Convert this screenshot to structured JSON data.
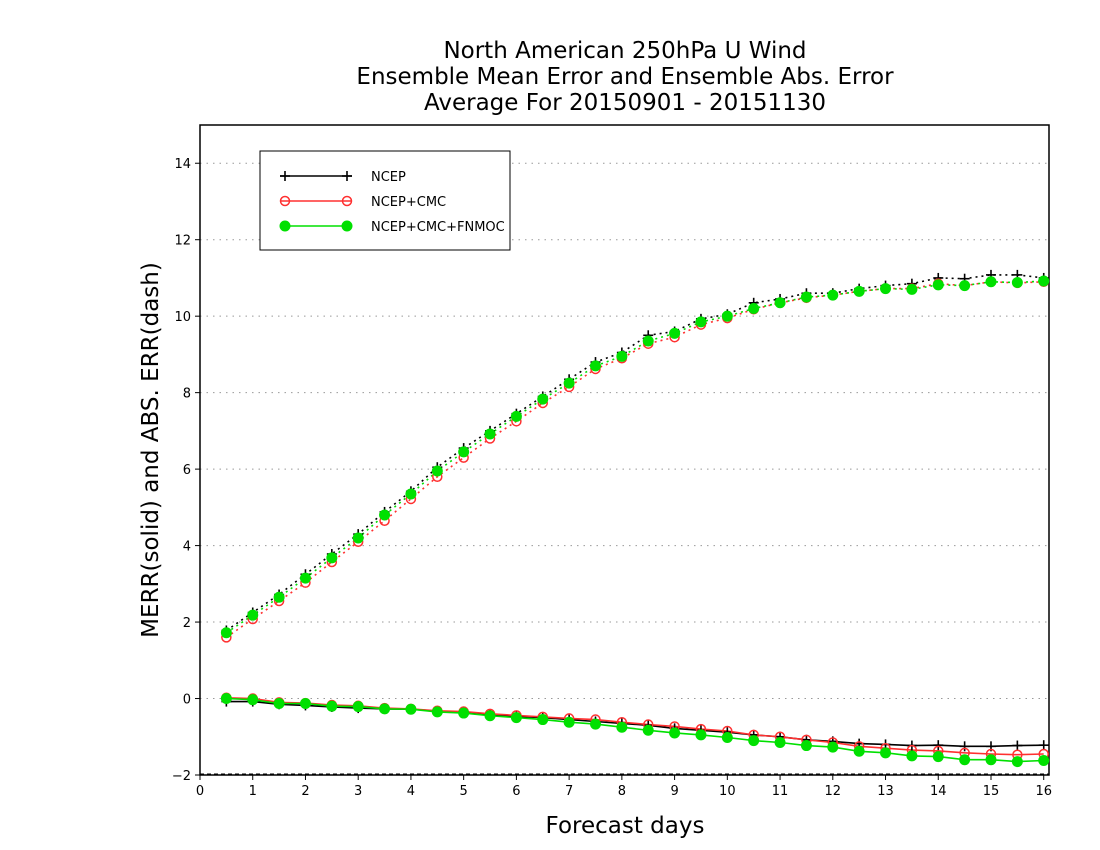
{
  "chart_data": {
    "type": "line",
    "title": [
      "North American 250hPa U Wind",
      "Ensemble Mean Error and Ensemble Abs. Error",
      "Average For 20150901 - 20151130"
    ],
    "xlabel": "Forecast days",
    "ylabel": "MERR(solid) and ABS. ERR(dash)",
    "xlim": [
      0,
      16.1
    ],
    "ylim": [
      -2,
      15
    ],
    "xticks": [
      0,
      1,
      2,
      3,
      4,
      5,
      6,
      7,
      8,
      9,
      10,
      11,
      12,
      13,
      14,
      15,
      16
    ],
    "yticks": [
      -2,
      0,
      2,
      4,
      6,
      8,
      10,
      12,
      14
    ],
    "grid": "horizontal dotted",
    "legend_position": "top-left",
    "x": [
      0.5,
      1,
      1.5,
      2,
      2.5,
      3,
      3.5,
      4,
      4.5,
      5,
      5.5,
      6,
      6.5,
      7,
      7.5,
      8,
      8.5,
      9,
      9.5,
      10,
      10.5,
      11,
      11.5,
      12,
      12.5,
      13,
      13.5,
      14,
      14.5,
      15,
      15.5,
      16
    ],
    "series": [
      {
        "name": "NCEP",
        "color": "#000000",
        "marker": "plus",
        "merr": [
          -0.08,
          -0.08,
          -0.15,
          -0.18,
          -0.22,
          -0.25,
          -0.27,
          -0.28,
          -0.33,
          -0.36,
          -0.42,
          -0.47,
          -0.5,
          -0.55,
          -0.6,
          -0.65,
          -0.7,
          -0.78,
          -0.83,
          -0.88,
          -0.95,
          -1.0,
          -1.08,
          -1.12,
          -1.18,
          -1.2,
          -1.23,
          -1.22,
          -1.25,
          -1.25,
          -1.23,
          -1.22
        ],
        "abs_err": [
          1.78,
          2.25,
          2.72,
          3.25,
          3.78,
          4.3,
          4.88,
          5.42,
          6.05,
          6.55,
          7.0,
          7.45,
          7.9,
          8.35,
          8.8,
          9.05,
          9.5,
          9.6,
          9.93,
          10.05,
          10.35,
          10.45,
          10.6,
          10.6,
          10.72,
          10.8,
          10.85,
          11.0,
          10.98,
          11.08,
          11.08,
          11.0
        ]
      },
      {
        "name": "NCEP+CMC",
        "color": "#ff3030",
        "marker": "open-circle",
        "merr": [
          0.02,
          0.0,
          -0.1,
          -0.12,
          -0.17,
          -0.19,
          -0.25,
          -0.27,
          -0.32,
          -0.34,
          -0.4,
          -0.44,
          -0.48,
          -0.52,
          -0.55,
          -0.62,
          -0.68,
          -0.73,
          -0.8,
          -0.85,
          -0.95,
          -1.0,
          -1.08,
          -1.15,
          -1.25,
          -1.3,
          -1.35,
          -1.37,
          -1.42,
          -1.45,
          -1.47,
          -1.45
        ],
        "abs_err": [
          1.6,
          2.08,
          2.55,
          3.03,
          3.57,
          4.1,
          4.65,
          5.22,
          5.8,
          6.3,
          6.8,
          7.25,
          7.73,
          8.15,
          8.62,
          8.9,
          9.28,
          9.45,
          9.78,
          9.95,
          10.18,
          10.35,
          10.48,
          10.55,
          10.65,
          10.72,
          10.72,
          10.85,
          10.8,
          10.9,
          10.87,
          10.9
        ]
      },
      {
        "name": "NCEP+CMC+FNMOC",
        "color": "#00e000",
        "marker": "filled-circle",
        "merr": [
          0.0,
          -0.03,
          -0.13,
          -0.13,
          -0.2,
          -0.21,
          -0.27,
          -0.28,
          -0.35,
          -0.38,
          -0.45,
          -0.5,
          -0.55,
          -0.62,
          -0.67,
          -0.75,
          -0.83,
          -0.9,
          -0.95,
          -1.02,
          -1.1,
          -1.15,
          -1.23,
          -1.27,
          -1.38,
          -1.42,
          -1.5,
          -1.52,
          -1.6,
          -1.6,
          -1.65,
          -1.62
        ],
        "abs_err": [
          1.72,
          2.18,
          2.65,
          3.15,
          3.68,
          4.2,
          4.8,
          5.35,
          5.95,
          6.45,
          6.92,
          7.38,
          7.83,
          8.25,
          8.7,
          8.95,
          9.35,
          9.55,
          9.85,
          10.0,
          10.2,
          10.35,
          10.5,
          10.55,
          10.65,
          10.72,
          10.7,
          10.82,
          10.8,
          10.9,
          10.88,
          10.92
        ]
      }
    ]
  }
}
